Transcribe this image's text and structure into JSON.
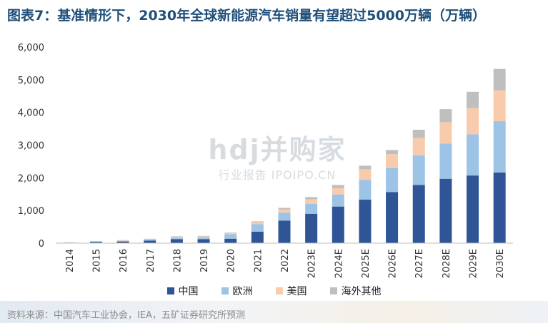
{
  "title": "图表7：基准情形下，2030年全球新能源汽车销量有望超过5000万辆（万辆）",
  "source": "资料来源：中国汽车工业协会，IEA，五矿证券研究所预测",
  "watermark": {
    "logo": "hdj并购家",
    "subtitle": "行业报告 IPOIPO.CN"
  },
  "chart_data": {
    "type": "bar",
    "stacked": true,
    "title": "图表7：基准情形下，2030年全球新能源汽车销量有望超过5000万辆（万辆）",
    "categories": [
      "2014",
      "2015",
      "2016",
      "2017",
      "2018",
      "2019",
      "2020",
      "2021",
      "2022",
      "2023E",
      "2024E",
      "2025E",
      "2026E",
      "2027E",
      "2028E",
      "2029E",
      "2030E"
    ],
    "series": [
      {
        "name": "中国",
        "color": "#2f5597",
        "values": [
          7,
          33,
          51,
          78,
          125,
          121,
          137,
          352,
          689,
          900,
          1120,
          1330,
          1560,
          1780,
          1970,
          2070,
          2160
        ]
      },
      {
        "name": "欧洲",
        "color": "#9dc3e6",
        "values": [
          10,
          20,
          22,
          31,
          41,
          56,
          137,
          229,
          245,
          300,
          370,
          600,
          740,
          910,
          1080,
          1260,
          1570
        ]
      },
      {
        "name": "美国",
        "color": "#f8cbad",
        "values": [
          11,
          11,
          15,
          18,
          36,
          32,
          30,
          62,
          101,
          140,
          190,
          330,
          420,
          530,
          650,
          800,
          950
        ]
      },
      {
        "name": "海外其他",
        "color": "#bfbfbf",
        "values": [
          2,
          3,
          5,
          8,
          13,
          13,
          16,
          25,
          45,
          70,
          100,
          110,
          130,
          250,
          400,
          500,
          650
        ]
      }
    ],
    "ylim": [
      0,
      6000
    ],
    "yticks": [
      0,
      1000,
      2000,
      3000,
      4000,
      5000,
      6000
    ],
    "ytick_labels": [
      "0",
      "1,000",
      "2,000",
      "3,000",
      "4,000",
      "5,000",
      "6,000"
    ],
    "grid": false,
    "legend_position": "bottom"
  }
}
